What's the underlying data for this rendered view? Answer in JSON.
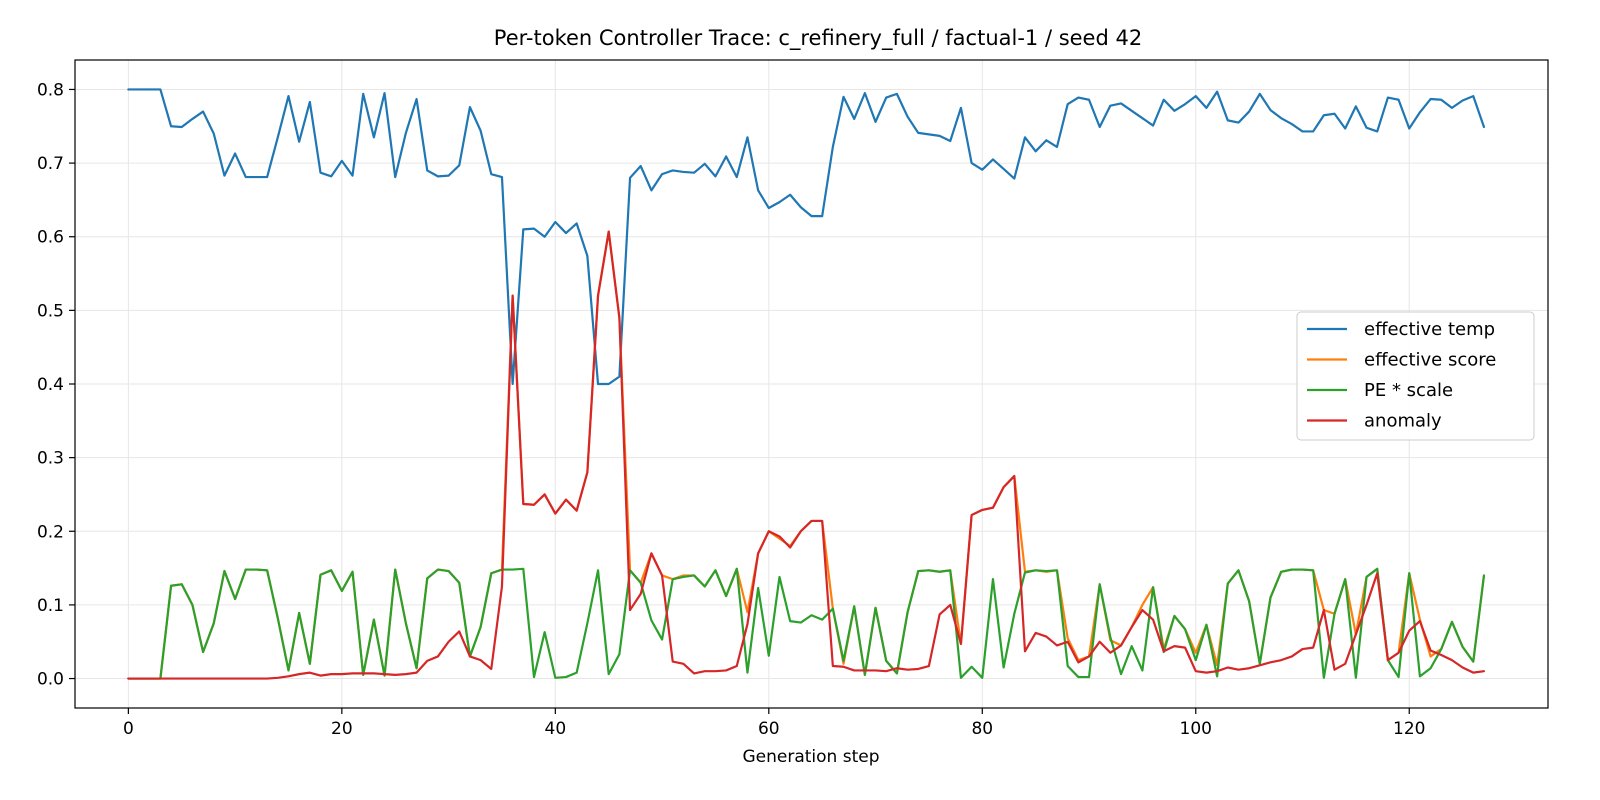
{
  "chart_data": {
    "type": "line",
    "title": "Per-token Controller Trace: c_refinery_full / factual-1 / seed 42",
    "xlabel": "Generation step",
    "ylabel": "",
    "xlim": [
      -5,
      133
    ],
    "ylim": [
      -0.04,
      0.84
    ],
    "x_ticks": [
      0,
      20,
      40,
      60,
      80,
      100,
      120
    ],
    "y_ticks": [
      0.0,
      0.1,
      0.2,
      0.3,
      0.4,
      0.5,
      0.6,
      0.7,
      0.8
    ],
    "grid": true,
    "legend_position": "center-right",
    "x_start": 0,
    "series": [
      {
        "name": "effective temp",
        "color": "#1f77b4",
        "values": [
          0.8,
          0.8,
          0.8,
          0.8,
          0.75,
          0.749,
          0.76,
          0.77,
          0.74,
          0.683,
          0.713,
          0.681,
          0.681,
          0.681,
          0.735,
          0.791,
          0.729,
          0.783,
          0.687,
          0.682,
          0.703,
          0.683,
          0.794,
          0.735,
          0.795,
          0.681,
          0.741,
          0.787,
          0.69,
          0.682,
          0.683,
          0.697,
          0.776,
          0.744,
          0.685,
          0.681,
          0.4,
          0.61,
          0.611,
          0.6,
          0.62,
          0.605,
          0.618,
          0.574,
          0.4,
          0.4,
          0.41,
          0.68,
          0.696,
          0.663,
          0.685,
          0.69,
          0.688,
          0.687,
          0.699,
          0.682,
          0.709,
          0.681,
          0.735,
          0.663,
          0.639,
          0.647,
          0.657,
          0.64,
          0.628,
          0.628,
          0.722,
          0.79,
          0.76,
          0.795,
          0.756,
          0.789,
          0.794,
          0.763,
          0.741,
          0.739,
          0.737,
          0.73,
          0.775,
          0.7,
          0.691,
          0.705,
          0.692,
          0.679,
          0.735,
          0.716,
          0.731,
          0.722,
          0.78,
          0.789,
          0.786,
          0.749,
          0.778,
          0.781,
          0.771,
          0.761,
          0.751,
          0.786,
          0.771,
          0.78,
          0.791,
          0.775,
          0.797,
          0.758,
          0.755,
          0.77,
          0.794,
          0.772,
          0.761,
          0.753,
          0.743,
          0.743,
          0.765,
          0.767,
          0.747,
          0.777,
          0.748,
          0.743,
          0.789,
          0.786,
          0.747,
          0.769,
          0.787,
          0.786,
          0.775,
          0.785,
          0.791,
          0.749
        ]
      },
      {
        "name": "effective score",
        "color": "#ff7f0e",
        "values": [
          0,
          0,
          0,
          0,
          0.126,
          0.128,
          0.1,
          0.036,
          0.075,
          0.146,
          0.108,
          0.148,
          0.148,
          0.147,
          0.082,
          0.011,
          0.089,
          0.02,
          0.141,
          0.147,
          0.119,
          0.145,
          0.005,
          0.08,
          0.004,
          0.148,
          0.075,
          0.014,
          0.136,
          0.148,
          0.146,
          0.13,
          0.03,
          0.07,
          0.143,
          0.148,
          0.52,
          0.237,
          0.236,
          0.25,
          0.224,
          0.243,
          0.228,
          0.28,
          0.52,
          0.607,
          0.49,
          0.147,
          0.13,
          0.17,
          0.14,
          0.135,
          0.14,
          0.14,
          0.125,
          0.147,
          0.112,
          0.149,
          0.09,
          0.17,
          0.2,
          0.19,
          0.18,
          0.2,
          0.214,
          0.214,
          0.095,
          0.02,
          0.098,
          0.005,
          0.096,
          0.024,
          0.007,
          0.09,
          0.146,
          0.147,
          0.145,
          0.147,
          0.047,
          0.222,
          0.229,
          0.232,
          0.26,
          0.275,
          0.145,
          0.147,
          0.145,
          0.147,
          0.055,
          0.025,
          0.03,
          0.128,
          0.052,
          0.045,
          0.07,
          0.1,
          0.124,
          0.04,
          0.085,
          0.067,
          0.035,
          0.073,
          0.018,
          0.129,
          0.147,
          0.105,
          0.02,
          0.11,
          0.145,
          0.148,
          0.148,
          0.147,
          0.093,
          0.088,
          0.135,
          0.06,
          0.138,
          0.149,
          0.025,
          0.035,
          0.143,
          0.08,
          0.03,
          0.04,
          0.077,
          0.043,
          0.023,
          0.14
        ]
      },
      {
        "name": "PE * scale",
        "color": "#2ca02c",
        "values": [
          0,
          0,
          0,
          0,
          0.126,
          0.128,
          0.1,
          0.036,
          0.075,
          0.146,
          0.108,
          0.148,
          0.148,
          0.147,
          0.082,
          0.011,
          0.089,
          0.02,
          0.141,
          0.147,
          0.119,
          0.145,
          0.005,
          0.08,
          0.004,
          0.148,
          0.075,
          0.014,
          0.136,
          0.148,
          0.146,
          0.13,
          0.03,
          0.07,
          0.143,
          0.148,
          0.148,
          0.149,
          0.002,
          0.063,
          0.001,
          0.002,
          0.008,
          0.075,
          0.147,
          0.006,
          0.033,
          0.147,
          0.13,
          0.079,
          0.053,
          0.135,
          0.138,
          0.14,
          0.125,
          0.147,
          0.112,
          0.149,
          0.008,
          0.123,
          0.031,
          0.138,
          0.078,
          0.076,
          0.086,
          0.08,
          0.095,
          0.024,
          0.098,
          0.005,
          0.096,
          0.024,
          0.007,
          0.09,
          0.146,
          0.147,
          0.145,
          0.147,
          0.001,
          0.016,
          0.001,
          0.135,
          0.015,
          0.088,
          0.144,
          0.147,
          0.146,
          0.147,
          0.017,
          0.002,
          0.002,
          0.128,
          0.056,
          0.006,
          0.044,
          0.011,
          0.124,
          0.036,
          0.085,
          0.067,
          0.025,
          0.073,
          0.003,
          0.129,
          0.147,
          0.105,
          0.02,
          0.11,
          0.145,
          0.148,
          0.148,
          0.147,
          0.001,
          0.088,
          0.135,
          0.001,
          0.138,
          0.149,
          0.025,
          0.002,
          0.143,
          0.003,
          0.014,
          0.04,
          0.077,
          0.043,
          0.023,
          0.14
        ]
      },
      {
        "name": "anomaly",
        "color": "#d62728",
        "values": [
          0,
          0,
          0,
          0,
          0,
          0,
          0,
          0,
          0,
          0,
          0,
          0,
          0,
          0,
          0.001,
          0.003,
          0.006,
          0.008,
          0.004,
          0.006,
          0.006,
          0.007,
          0.007,
          0.007,
          0.006,
          0.005,
          0.006,
          0.008,
          0.024,
          0.03,
          0.05,
          0.064,
          0.03,
          0.025,
          0.013,
          0.125,
          0.52,
          0.237,
          0.236,
          0.25,
          0.224,
          0.243,
          0.228,
          0.28,
          0.52,
          0.607,
          0.49,
          0.093,
          0.115,
          0.17,
          0.14,
          0.023,
          0.02,
          0.007,
          0.01,
          0.01,
          0.011,
          0.017,
          0.074,
          0.17,
          0.2,
          0.193,
          0.178,
          0.2,
          0.214,
          0.214,
          0.017,
          0.016,
          0.011,
          0.011,
          0.011,
          0.01,
          0.014,
          0.012,
          0.013,
          0.017,
          0.087,
          0.1,
          0.047,
          0.222,
          0.229,
          0.232,
          0.26,
          0.275,
          0.037,
          0.062,
          0.057,
          0.045,
          0.05,
          0.022,
          0.03,
          0.05,
          0.035,
          0.045,
          0.07,
          0.093,
          0.08,
          0.037,
          0.044,
          0.042,
          0.01,
          0.008,
          0.01,
          0.015,
          0.012,
          0.014,
          0.018,
          0.022,
          0.025,
          0.03,
          0.04,
          0.042,
          0.093,
          0.012,
          0.02,
          0.06,
          0.1,
          0.143,
          0.025,
          0.035,
          0.065,
          0.078,
          0.038,
          0.032,
          0.025,
          0.015,
          0.008,
          0.01
        ]
      }
    ]
  }
}
